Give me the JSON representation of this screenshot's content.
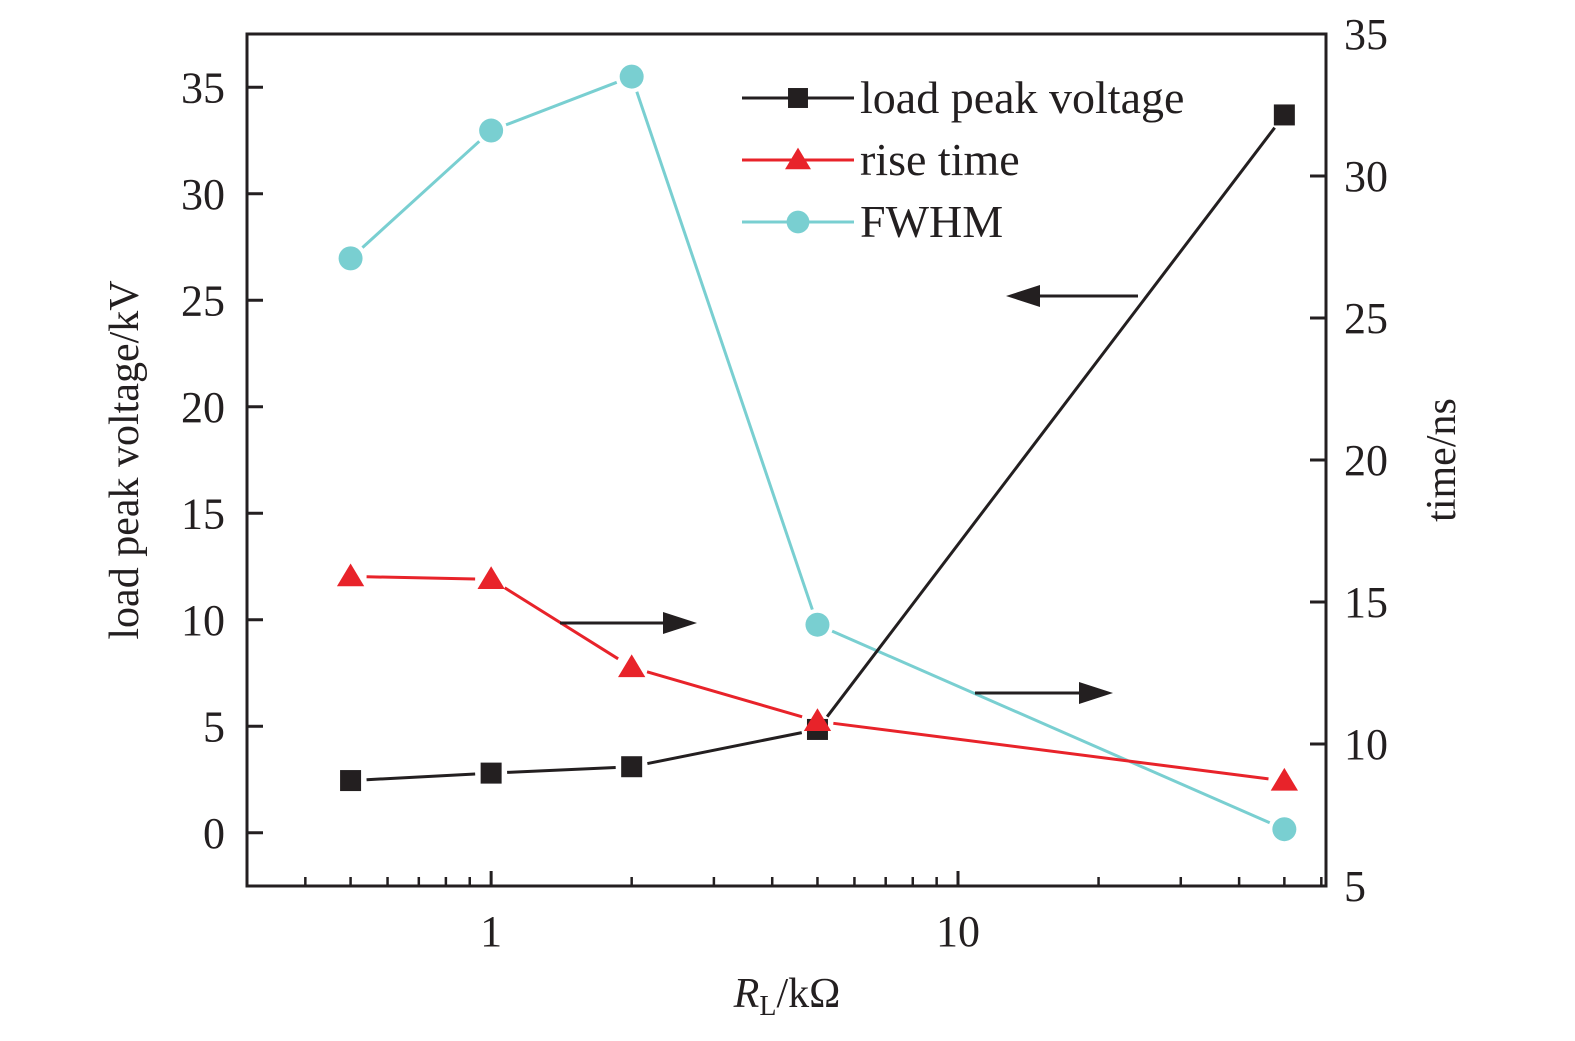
{
  "chart_data": {
    "type": "line",
    "title": "",
    "xlabel": "R_L/kΩ",
    "xlabel_main": "R",
    "xlabel_sub": "L",
    "xlabel_rest": "/kΩ",
    "xscale": "log",
    "xlim": [
      0.3,
      61.4
    ],
    "x_major_ticks": [
      1,
      10
    ],
    "x_tick_labels": [
      "1",
      "10"
    ],
    "x_minor_ticks": [
      0.3,
      0.4,
      0.5,
      0.6,
      0.7,
      0.8,
      0.9,
      2,
      3,
      4,
      5,
      6,
      7,
      8,
      9,
      20,
      30,
      40,
      50,
      60
    ],
    "ylabel_left": "load peak voltage/kV",
    "ylim_left": [
      -2.5,
      37.5
    ],
    "y_left_ticks": [
      0,
      5,
      10,
      15,
      20,
      25,
      30,
      35
    ],
    "ylabel_right": "time/ns",
    "ylim_right": [
      5,
      35
    ],
    "y_right_ticks": [
      5,
      10,
      15,
      20,
      25,
      30,
      35
    ],
    "grid": false,
    "legend_position": "top-right",
    "x": [
      0.5,
      1,
      2,
      5,
      50
    ],
    "series": [
      {
        "name": "load peak voltage",
        "axis": "left",
        "marker": "square",
        "color": "#231f20",
        "values": [
          2.45,
          2.8,
          3.1,
          4.85,
          33.7
        ]
      },
      {
        "name": "rise time",
        "axis": "right",
        "marker": "triangle",
        "color": "#e8232a",
        "values": [
          15.9,
          15.8,
          12.7,
          10.8,
          8.7
        ]
      },
      {
        "name": "FWHM",
        "axis": "right",
        "marker": "circle",
        "color": "#79cfd1",
        "values": [
          27.1,
          31.6,
          33.5,
          14.2,
          7.0
        ]
      }
    ],
    "annotations": [
      {
        "type": "arrow",
        "direction": "left",
        "meaning": "load peak voltage uses left axis"
      },
      {
        "type": "arrow",
        "direction": "right",
        "meaning": "rise time uses right axis"
      },
      {
        "type": "arrow",
        "direction": "right",
        "meaning": "FWHM uses right axis"
      }
    ]
  }
}
